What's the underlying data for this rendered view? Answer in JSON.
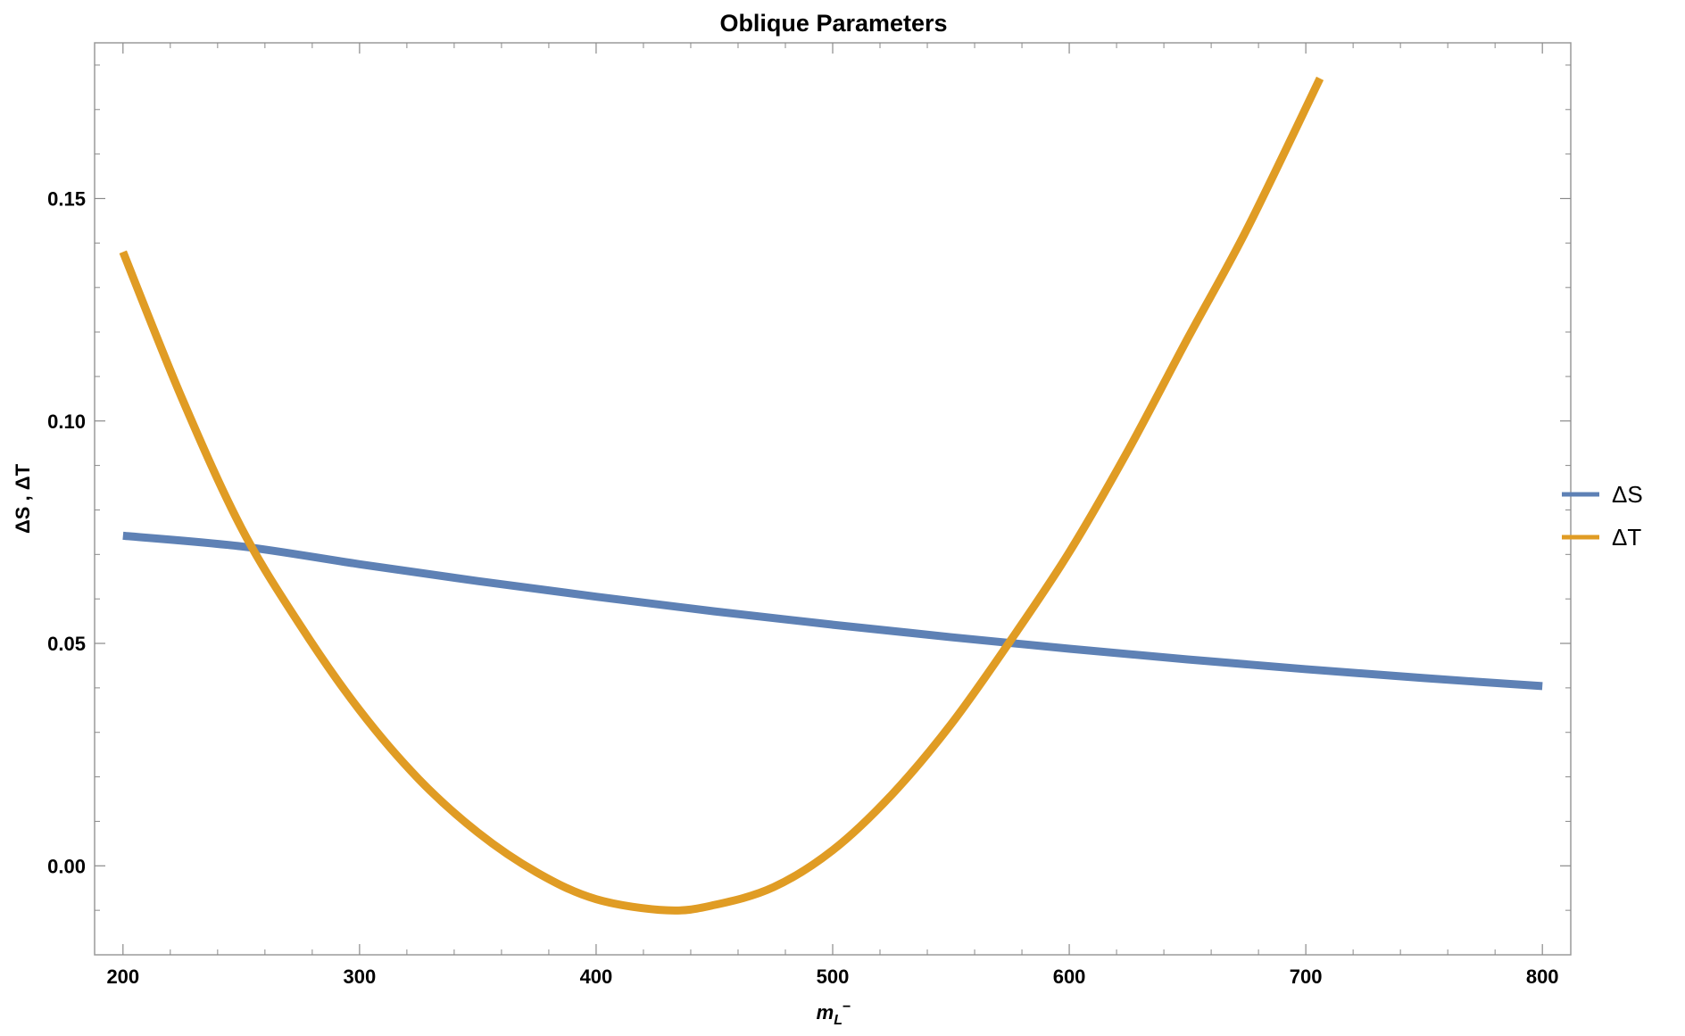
{
  "chart_data": {
    "type": "line",
    "title": "Oblique Parameters",
    "xlabel_main": "m",
    "xlabel_sub": "L",
    "xlabel_sup": "−",
    "ylabel": "ΔS , ΔT",
    "xlim": [
      188,
      812
    ],
    "ylim": [
      -0.02,
      0.185
    ],
    "x_ticks": [
      200,
      300,
      400,
      500,
      600,
      700,
      800
    ],
    "x_tick_labels": [
      "200",
      "300",
      "400",
      "500",
      "600",
      "700",
      "800"
    ],
    "y_ticks": [
      0.0,
      0.05,
      0.1,
      0.15
    ],
    "y_tick_labels": [
      "0.00",
      "0.05",
      "0.10",
      "0.15"
    ],
    "grid": false,
    "legend_position": "right",
    "series": [
      {
        "name": "ΔS",
        "color": "#5e81b5",
        "x": [
          200,
          250,
          300,
          350,
          400,
          450,
          500,
          550,
          600,
          650,
          700,
          750,
          800
        ],
        "y": [
          0.0742,
          0.0718,
          0.0678,
          0.064,
          0.0605,
          0.0572,
          0.0542,
          0.0514,
          0.0488,
          0.0464,
          0.0442,
          0.0422,
          0.0404
        ]
      },
      {
        "name": "ΔT",
        "color": "#e09c24",
        "x": [
          200,
          225,
          250,
          275,
          300,
          325,
          350,
          375,
          400,
          430,
          450,
          475,
          500,
          525,
          550,
          575,
          600,
          625,
          650,
          675,
          706
        ],
        "y": [
          0.138,
          0.105,
          0.076,
          0.054,
          0.035,
          0.0195,
          0.0075,
          -0.0015,
          -0.0075,
          -0.01,
          -0.0088,
          -0.0048,
          0.0035,
          0.016,
          0.0318,
          0.0505,
          0.0705,
          0.0935,
          0.1185,
          0.143,
          0.177
        ]
      }
    ]
  }
}
